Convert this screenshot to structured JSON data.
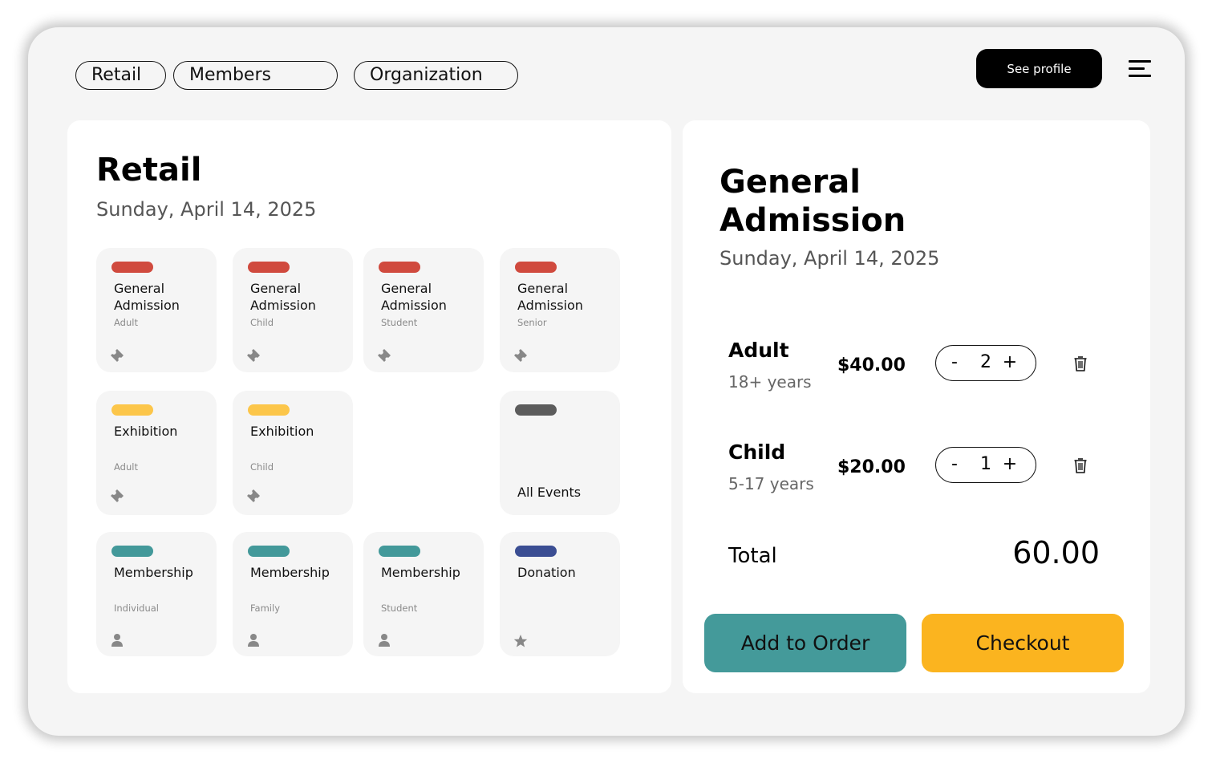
{
  "nav": {
    "tabs": [
      "Retail",
      "Members",
      "Organization"
    ],
    "profile_button": "See profile",
    "menu_icon": "hamburger-menu-icon"
  },
  "retail": {
    "title": "Retail",
    "date": "Sunday, April 14, 2025",
    "tiles": [
      {
        "name": "General Admission",
        "sub": "Adult",
        "color": "#d04a3e",
        "icon": "ticket-icon"
      },
      {
        "name": "General Admission",
        "sub": "Child",
        "color": "#d04a3e",
        "icon": "ticket-icon"
      },
      {
        "name": "General Admission",
        "sub": "Student",
        "color": "#d04a3e",
        "icon": "ticket-icon"
      },
      {
        "name": "General Admission",
        "sub": "Senior",
        "color": "#d04a3e",
        "icon": "ticket-icon"
      },
      {
        "name": "Exhibition",
        "sub": "Adult",
        "color": "#fcc64a",
        "icon": "ticket-icon"
      },
      {
        "name": "Exhibition",
        "sub": "Child",
        "color": "#fcc64a",
        "icon": "ticket-icon"
      },
      {
        "name": "All Events",
        "sub": "",
        "color": "#5c5c5c",
        "icon": ""
      },
      {
        "name": "Membership",
        "sub": "Individual",
        "color": "#43999a",
        "icon": "person-icon"
      },
      {
        "name": "Membership",
        "sub": "Family",
        "color": "#43999a",
        "icon": "person-icon"
      },
      {
        "name": "Membership",
        "sub": "Student",
        "color": "#43999a",
        "icon": "person-icon"
      },
      {
        "name": "Donation",
        "sub": "",
        "color": "#3b4e93",
        "icon": "star-icon"
      }
    ]
  },
  "order": {
    "title_line1": "General",
    "title_line2": "Admission",
    "date": "Sunday, April 14, 2025",
    "items": [
      {
        "name": "Adult",
        "sub": "18+ years",
        "price": "$40.00",
        "qty": "2",
        "minus": "-",
        "plus": "+"
      },
      {
        "name": "Child",
        "sub": "5-17 years",
        "price": "$20.00",
        "qty": "1",
        "minus": "-",
        "plus": "+"
      }
    ],
    "total_label": "Total",
    "total_value": "60.00",
    "add_button": "Add to Order",
    "checkout_button": "Checkout",
    "add_color": "#449a9a",
    "checkout_color": "#fbb41f"
  }
}
